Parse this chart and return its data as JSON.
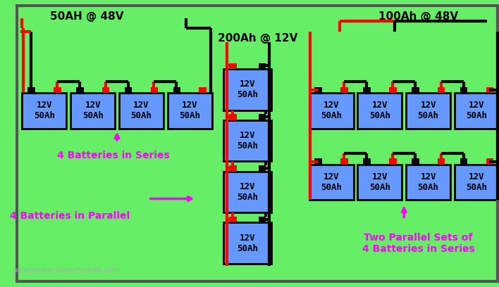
{
  "bg_color": "#66ee66",
  "border_color": "#333333",
  "battery_fill": "#6699ff",
  "battery_text_color": "#000000",
  "battery_label": "12V\n50Ah",
  "wire_black": "#000000",
  "wire_red": "#ff0000",
  "annotation_color": "#ff00ff",
  "title_color": "#000000",
  "watermark": "solarpowerplanetearth.com",
  "watermark_color": "#aaaaaa",
  "label_series_left": "4 Batteries in Series",
  "label_parallel_left": "4 Batteries in Parallel",
  "label_right": "Two Parallel Sets of\n4 Batteries in Series",
  "title_left": "50AH @ 48V",
  "title_mid": "200Ah @ 12V",
  "title_right": "100Ah @ 48V"
}
